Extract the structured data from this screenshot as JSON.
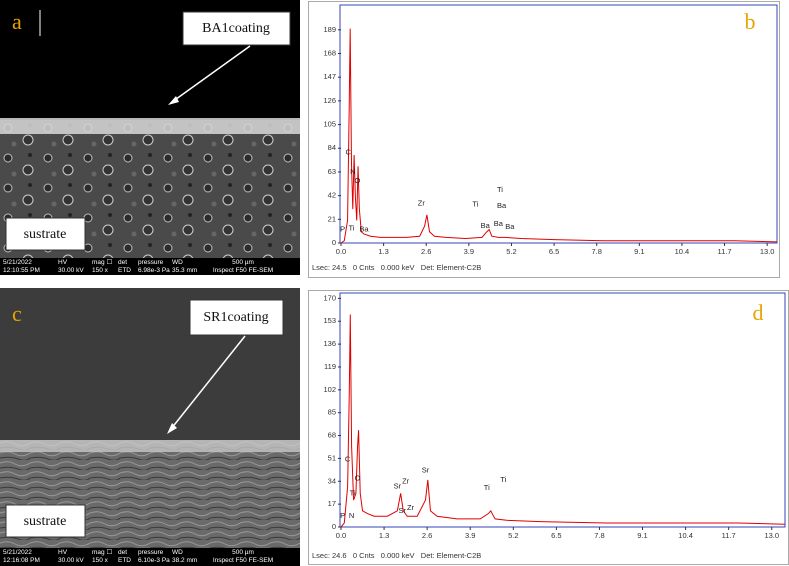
{
  "panels": [
    {
      "label": "a",
      "callout": "BA1coating",
      "region_label": "sustrate",
      "info": [
        [
          "5/21/2022",
          "12:10:55 PM"
        ],
        [
          "HV",
          "30.00 kV"
        ],
        [
          "mag ☐",
          "150 x"
        ],
        [
          "det",
          "ETD"
        ],
        [
          "pressure",
          "6.98e-3 Pa"
        ],
        [
          "WD",
          "35.3 mm"
        ],
        [
          "500 µm",
          "Inspect F50 FE-SEM"
        ]
      ]
    },
    {
      "label": "c",
      "callout": "SR1coating",
      "region_label": "sustrate",
      "info": [
        [
          "5/21/2022",
          "12:16:08 PM"
        ],
        [
          "HV",
          "30.00 kV"
        ],
        [
          "mag ☐",
          "150 x"
        ],
        [
          "det",
          "ETD"
        ],
        [
          "pressure",
          "6.10e-3 Pa"
        ],
        [
          "WD",
          "38.2 mm"
        ],
        [
          "500 µm",
          "Inspect F50 FE-SEM"
        ]
      ]
    }
  ],
  "chart_data": [
    {
      "type": "line",
      "panel_label": "b",
      "color": "#e00000",
      "footer": "Lsec: 24.5   0 Cnts   0.000 keV   Det: Element-C2B",
      "x": [
        0,
        0.1,
        0.2,
        0.25,
        0.28,
        0.32,
        0.36,
        0.4,
        0.44,
        0.48,
        0.52,
        0.56,
        0.62,
        0.7,
        0.9,
        1.2,
        1.6,
        2.0,
        2.4,
        2.55,
        2.62,
        2.7,
        2.85,
        3.2,
        3.8,
        4.3,
        4.45,
        4.52,
        4.6,
        4.8,
        5.0,
        5.5,
        6.5,
        8,
        10,
        12,
        13.3
      ],
      "values": [
        0,
        2,
        20,
        120,
        190,
        70,
        30,
        78,
        40,
        20,
        68,
        30,
        10,
        8,
        6,
        5,
        5,
        5,
        6,
        15,
        25,
        10,
        6,
        5,
        4,
        5,
        10,
        12,
        6,
        5,
        5,
        4,
        3,
        2,
        2,
        2,
        1
      ],
      "xlim": [
        0,
        13.3
      ],
      "ylim": [
        0,
        211
      ],
      "xticks": [
        {
          "value": 0,
          "label": "0.0"
        },
        1.3,
        2.6,
        3.9,
        5.2,
        6.5,
        7.8,
        9.1,
        10.4,
        11.7,
        {
          "value": 13,
          "label": "13.0"
        }
      ],
      "yticks": [
        0,
        21,
        42,
        63,
        84,
        105,
        126,
        147,
        168,
        189
      ],
      "annotations": [
        {
          "text": "C",
          "x": 0.22,
          "y": 80
        },
        {
          "text": "N",
          "x": 0.36,
          "y": 63
        },
        {
          "text": "O",
          "x": 0.5,
          "y": 55
        },
        {
          "text": "P",
          "x": 0.05,
          "y": 12
        },
        {
          "text": "Ti",
          "x": 0.32,
          "y": 13
        },
        {
          "text": "Ba",
          "x": 0.7,
          "y": 12
        },
        {
          "text": "Zr",
          "x": 2.45,
          "y": 35
        },
        {
          "text": "Ti",
          "x": 4.1,
          "y": 34
        },
        {
          "text": "Ti",
          "x": 4.85,
          "y": 47
        },
        {
          "text": "Ba",
          "x": 4.9,
          "y": 33
        },
        {
          "text": "Ba",
          "x": 4.4,
          "y": 15
        },
        {
          "text": "Ba",
          "x": 4.8,
          "y": 17
        },
        {
          "text": "Ba",
          "x": 5.15,
          "y": 14
        }
      ]
    },
    {
      "type": "line",
      "panel_label": "d",
      "color": "#e00000",
      "footer": "Lsec: 24.6   0 Cnts   0.000 keV   Det: Element-C2B",
      "x": [
        0,
        0.1,
        0.2,
        0.25,
        0.28,
        0.32,
        0.38,
        0.45,
        0.5,
        0.53,
        0.58,
        0.65,
        0.8,
        1.0,
        1.4,
        1.7,
        1.8,
        1.88,
        2.0,
        2.3,
        2.55,
        2.62,
        2.7,
        2.9,
        3.5,
        4.2,
        4.45,
        4.52,
        4.65,
        5.0,
        6,
        8,
        10,
        12,
        13.4
      ],
      "values": [
        0,
        3,
        30,
        100,
        158,
        60,
        20,
        25,
        60,
        72,
        25,
        12,
        10,
        8,
        8,
        12,
        25,
        12,
        8,
        8,
        20,
        35,
        12,
        8,
        6,
        6,
        10,
        12,
        6,
        5,
        4,
        3,
        3,
        3,
        2
      ],
      "xlim": [
        0,
        13.4
      ],
      "ylim": [
        0,
        174
      ],
      "xticks": [
        {
          "value": 0,
          "label": "0.0"
        },
        1.3,
        2.6,
        3.9,
        5.2,
        6.5,
        7.8,
        9.1,
        10.4,
        11.7,
        {
          "value": 13,
          "label": "13.0"
        }
      ],
      "yticks": [
        0,
        17,
        34,
        51,
        68,
        85,
        102,
        119,
        136,
        153,
        170
      ],
      "annotations": [
        {
          "text": "C",
          "x": 0.2,
          "y": 50
        },
        {
          "text": "O",
          "x": 0.5,
          "y": 36
        },
        {
          "text": "Ti",
          "x": 0.35,
          "y": 25
        },
        {
          "text": "P",
          "x": 0.05,
          "y": 8
        },
        {
          "text": "N",
          "x": 0.32,
          "y": 8
        },
        {
          "text": "Sr",
          "x": 1.7,
          "y": 30
        },
        {
          "text": "Zr",
          "x": 1.95,
          "y": 34
        },
        {
          "text": "Sr",
          "x": 1.85,
          "y": 12
        },
        {
          "text": "Zr",
          "x": 2.1,
          "y": 14
        },
        {
          "text": "Sr",
          "x": 2.55,
          "y": 42
        },
        {
          "text": "Ti",
          "x": 4.4,
          "y": 29
        },
        {
          "text": "Ti",
          "x": 4.9,
          "y": 35
        }
      ]
    }
  ]
}
